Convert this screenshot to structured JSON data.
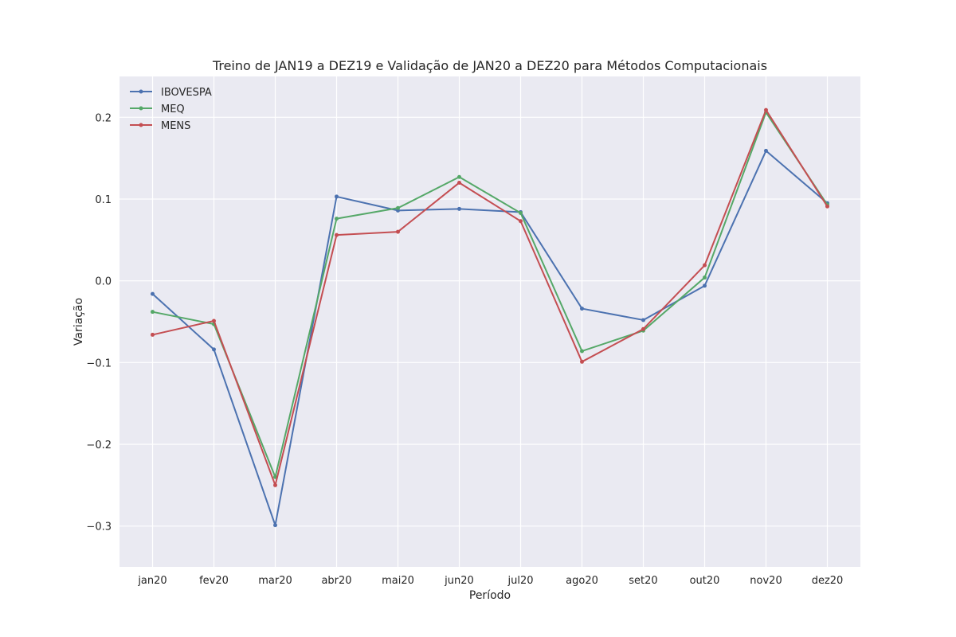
{
  "chart_data": {
    "type": "line",
    "title": "Treino de JAN19 a DEZ19 e Validação de JAN20 a DEZ20 para Métodos Computacionais",
    "xlabel": "Período",
    "ylabel": "Variação",
    "categories": [
      "jan20",
      "fev20",
      "mar20",
      "abr20",
      "mai20",
      "jun20",
      "jul20",
      "ago20",
      "set20",
      "out20",
      "nov20",
      "dez20"
    ],
    "ylim": [
      -0.35,
      0.25
    ],
    "yticks": [
      -0.3,
      -0.2,
      -0.1,
      0.0,
      0.1,
      0.2
    ],
    "ytick_labels": [
      "−0.3",
      "−0.2",
      "−0.1",
      "0.0",
      "0.1",
      "0.2"
    ],
    "grid": true,
    "legend_position": "top-left",
    "series": [
      {
        "name": "IBOVESPA",
        "color": "#4c72b0",
        "values": [
          -0.016,
          -0.084,
          -0.299,
          0.103,
          0.086,
          0.088,
          0.084,
          -0.034,
          -0.048,
          -0.006,
          0.159,
          0.095
        ]
      },
      {
        "name": "MEQ",
        "color": "#55a868",
        "values": [
          -0.038,
          -0.053,
          -0.24,
          0.076,
          0.089,
          0.127,
          0.083,
          -0.086,
          -0.061,
          0.004,
          0.206,
          0.093
        ]
      },
      {
        "name": "MENS",
        "color": "#c44e52",
        "values": [
          -0.066,
          -0.049,
          -0.25,
          0.056,
          0.06,
          0.12,
          0.073,
          -0.099,
          -0.059,
          0.019,
          0.209,
          0.091
        ]
      }
    ]
  }
}
